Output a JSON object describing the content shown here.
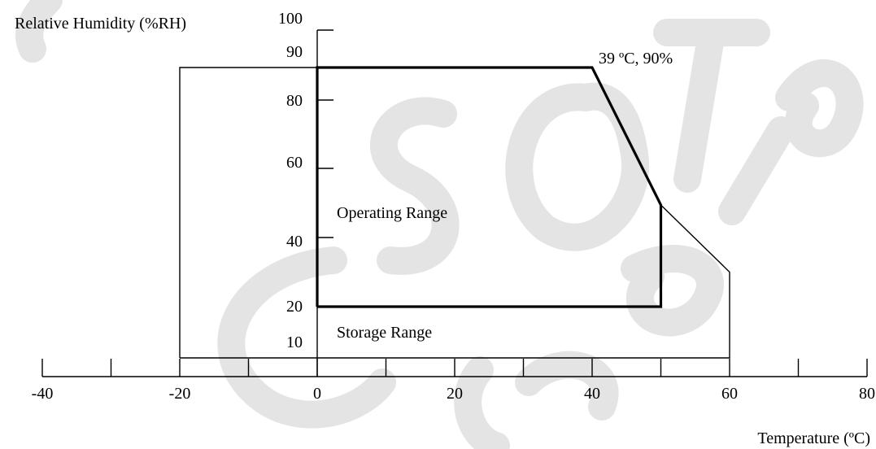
{
  "chart_data": {
    "type": "area",
    "title": "",
    "xlabel": "Temperature (ºC)",
    "ylabel": "Relative Humidity (%RH)",
    "x_ticks": [
      "-40",
      "-20",
      "0",
      "20",
      "40",
      "60",
      "80"
    ],
    "x_tick_values": [
      -40,
      -20,
      0,
      20,
      40,
      60,
      80
    ],
    "x_minor_tick_values": [
      -30,
      -10,
      10,
      30,
      50,
      70
    ],
    "y_ticks": [
      "100",
      "90",
      "80",
      "60",
      "40",
      "20",
      "10"
    ],
    "y_tick_values": [
      100,
      90,
      80,
      60,
      40,
      20,
      10
    ],
    "series": [
      {
        "name": "Storage Range",
        "x": [
          -20,
          -20,
          0,
          40,
          50,
          60,
          60,
          -20
        ],
        "y": [
          0,
          100,
          100,
          100,
          55,
          30,
          0,
          0
        ]
      },
      {
        "name": "Operating Range",
        "x": [
          0,
          0,
          40,
          50,
          50,
          0
        ],
        "y": [
          20,
          100,
          100,
          55,
          20,
          20
        ]
      }
    ],
    "annotations": [
      {
        "text": "39 ºC, 90%",
        "x": 39,
        "y": 90
      }
    ],
    "watermark": "CSOT Confidential",
    "colors": {
      "lines": "#000000",
      "watermark": "#e0e0e0"
    }
  }
}
